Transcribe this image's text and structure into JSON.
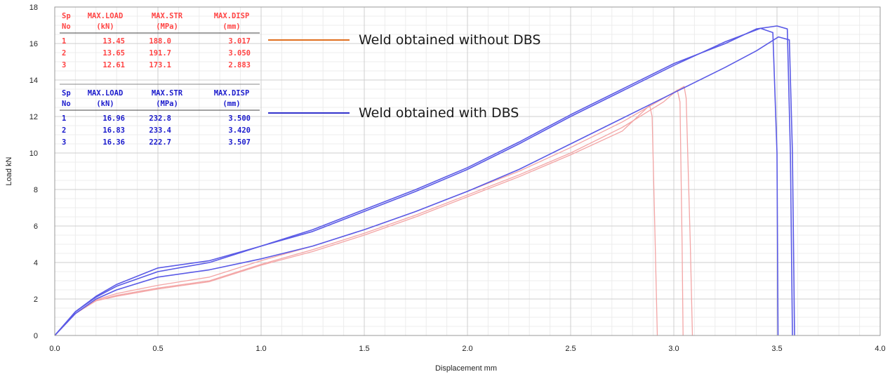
{
  "chart_data": {
    "type": "line",
    "title": "",
    "xlabel": "Displacement mm",
    "ylabel": "Load kN",
    "xlim": [
      0,
      4.0
    ],
    "ylim": [
      0,
      18
    ],
    "xticks": [
      "0.0",
      "0.5",
      "1.0",
      "1.5",
      "2.0",
      "2.5",
      "3.0",
      "3.5",
      "4.0"
    ],
    "yticks": [
      "0",
      "2",
      "4",
      "6",
      "8",
      "10",
      "12",
      "14",
      "16",
      "18"
    ],
    "grid": true,
    "legend": [
      {
        "label": "Weld obtained without DBS",
        "color": "#e07020"
      },
      {
        "label": "Weld obtained with DBS",
        "color": "#3333cc"
      }
    ],
    "tables": [
      {
        "group": "without DBS",
        "color": "#ff4444",
        "headers": [
          [
            "Sp",
            "No"
          ],
          [
            "MAX.LOAD",
            "(kN)"
          ],
          [
            "MAX.STR",
            "(MPa)"
          ],
          [
            "MAX.DISP",
            "(mm)"
          ]
        ],
        "rows": [
          [
            "1",
            "13.45",
            "188.0",
            "3.017"
          ],
          [
            "2",
            "13.65",
            "191.7",
            "3.050"
          ],
          [
            "3",
            "12.61",
            "173.1",
            "2.883"
          ]
        ]
      },
      {
        "group": "with DBS",
        "color": "#1a1acc",
        "headers": [
          [
            "Sp",
            "No"
          ],
          [
            "MAX.LOAD",
            "(kN)"
          ],
          [
            "MAX.STR",
            "(MPa)"
          ],
          [
            "MAX.DISP",
            "(mm)"
          ]
        ],
        "rows": [
          [
            "1",
            "16.96",
            "232.8",
            "3.500"
          ],
          [
            "2",
            "16.83",
            "233.4",
            "3.420"
          ],
          [
            "3",
            "16.36",
            "222.7",
            "3.507"
          ]
        ]
      }
    ],
    "series": [
      {
        "name": "without DBS Sp1",
        "group": "without DBS",
        "color": "#f3a5a5",
        "points": [
          [
            0,
            0
          ],
          [
            0.1,
            1.2
          ],
          [
            0.2,
            1.9
          ],
          [
            0.3,
            2.2
          ],
          [
            0.5,
            2.6
          ],
          [
            0.75,
            3.0
          ],
          [
            1.0,
            3.9
          ],
          [
            1.25,
            4.7
          ],
          [
            1.5,
            5.6
          ],
          [
            1.75,
            6.6
          ],
          [
            2.0,
            7.7
          ],
          [
            2.25,
            8.8
          ],
          [
            2.5,
            10.0
          ],
          [
            2.75,
            11.4
          ],
          [
            2.95,
            12.8
          ],
          [
            3.017,
            13.45
          ],
          [
            3.03,
            12.8
          ],
          [
            3.04,
            5.0
          ],
          [
            3.045,
            0
          ]
        ]
      },
      {
        "name": "without DBS Sp2",
        "group": "without DBS",
        "color": "#f3a5a5",
        "points": [
          [
            0,
            0
          ],
          [
            0.1,
            1.2
          ],
          [
            0.2,
            1.95
          ],
          [
            0.3,
            2.3
          ],
          [
            0.5,
            2.75
          ],
          [
            0.75,
            3.2
          ],
          [
            1.0,
            4.1
          ],
          [
            1.25,
            4.9
          ],
          [
            1.5,
            5.8
          ],
          [
            1.75,
            6.8
          ],
          [
            2.0,
            7.9
          ],
          [
            2.25,
            9.0
          ],
          [
            2.5,
            10.3
          ],
          [
            2.75,
            11.7
          ],
          [
            2.95,
            13.0
          ],
          [
            3.05,
            13.65
          ],
          [
            3.06,
            13.0
          ],
          [
            3.08,
            5.0
          ],
          [
            3.09,
            0
          ]
        ]
      },
      {
        "name": "without DBS Sp3",
        "group": "without DBS",
        "color": "#f3a5a5",
        "points": [
          [
            0,
            0
          ],
          [
            0.1,
            1.2
          ],
          [
            0.2,
            1.9
          ],
          [
            0.3,
            2.15
          ],
          [
            0.5,
            2.55
          ],
          [
            0.75,
            2.95
          ],
          [
            1.0,
            3.85
          ],
          [
            1.25,
            4.6
          ],
          [
            1.5,
            5.5
          ],
          [
            1.75,
            6.5
          ],
          [
            2.0,
            7.6
          ],
          [
            2.25,
            8.7
          ],
          [
            2.5,
            9.9
          ],
          [
            2.75,
            11.2
          ],
          [
            2.883,
            12.61
          ],
          [
            2.895,
            12.0
          ],
          [
            2.91,
            5.0
          ],
          [
            2.92,
            0
          ]
        ]
      },
      {
        "name": "with DBS Sp1",
        "group": "with DBS",
        "color": "#5a5ae6",
        "points": [
          [
            0,
            0
          ],
          [
            0.1,
            1.3
          ],
          [
            0.2,
            2.1
          ],
          [
            0.3,
            2.7
          ],
          [
            0.5,
            3.5
          ],
          [
            0.75,
            4.0
          ],
          [
            1.0,
            4.9
          ],
          [
            1.25,
            5.8
          ],
          [
            1.5,
            6.9
          ],
          [
            1.75,
            8.0
          ],
          [
            2.0,
            9.2
          ],
          [
            2.25,
            10.6
          ],
          [
            2.5,
            12.1
          ],
          [
            2.75,
            13.5
          ],
          [
            3.0,
            14.9
          ],
          [
            3.25,
            16.0
          ],
          [
            3.4,
            16.8
          ],
          [
            3.5,
            16.96
          ],
          [
            3.55,
            16.8
          ],
          [
            3.565,
            10.0
          ],
          [
            3.575,
            0
          ]
        ]
      },
      {
        "name": "with DBS Sp2",
        "group": "with DBS",
        "color": "#5a5ae6",
        "points": [
          [
            0,
            0
          ],
          [
            0.1,
            1.3
          ],
          [
            0.2,
            2.15
          ],
          [
            0.3,
            2.8
          ],
          [
            0.5,
            3.7
          ],
          [
            0.75,
            4.1
          ],
          [
            1.0,
            4.9
          ],
          [
            1.25,
            5.7
          ],
          [
            1.5,
            6.8
          ],
          [
            1.75,
            7.9
          ],
          [
            2.0,
            9.1
          ],
          [
            2.25,
            10.5
          ],
          [
            2.5,
            12.0
          ],
          [
            2.75,
            13.4
          ],
          [
            3.0,
            14.8
          ],
          [
            3.25,
            16.1
          ],
          [
            3.42,
            16.83
          ],
          [
            3.48,
            16.6
          ],
          [
            3.5,
            10.0
          ],
          [
            3.505,
            0
          ]
        ]
      },
      {
        "name": "with DBS Sp3",
        "group": "with DBS",
        "color": "#5a5ae6",
        "points": [
          [
            0,
            0
          ],
          [
            0.1,
            1.2
          ],
          [
            0.2,
            2.0
          ],
          [
            0.3,
            2.5
          ],
          [
            0.5,
            3.2
          ],
          [
            0.75,
            3.6
          ],
          [
            1.0,
            4.2
          ],
          [
            1.25,
            4.9
          ],
          [
            1.5,
            5.8
          ],
          [
            1.75,
            6.8
          ],
          [
            2.0,
            7.9
          ],
          [
            2.25,
            9.1
          ],
          [
            2.5,
            10.5
          ],
          [
            2.75,
            11.9
          ],
          [
            3.0,
            13.3
          ],
          [
            3.25,
            14.7
          ],
          [
            3.4,
            15.6
          ],
          [
            3.507,
            16.36
          ],
          [
            3.56,
            16.2
          ],
          [
            3.575,
            10.0
          ],
          [
            3.585,
            0
          ]
        ]
      }
    ]
  }
}
